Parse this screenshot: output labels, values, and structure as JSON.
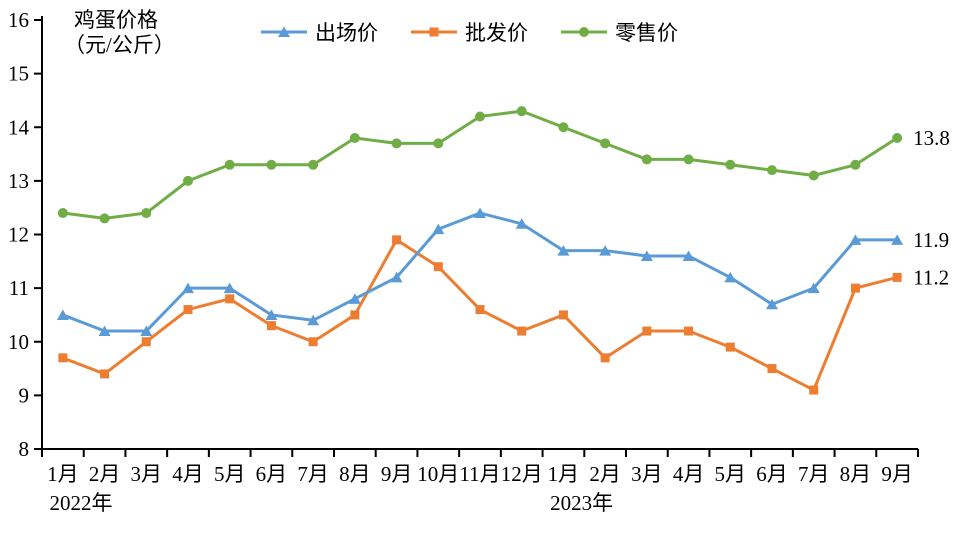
{
  "page": {
    "background": "#ffffff"
  },
  "chart": {
    "title_line1": "鸡蛋价格",
    "title_line2": "（元/公斤）"
  },
  "chart_data": {
    "type": "line",
    "title": "鸡蛋价格（元/公斤）",
    "ylabel": "鸡蛋价格（元/公斤）",
    "xlabel": "",
    "ylim": [
      8,
      16
    ],
    "yticks": [
      8,
      9,
      10,
      11,
      12,
      13,
      14,
      15,
      16
    ],
    "grid": false,
    "legend_position": "top",
    "axis_color": "#000000",
    "categories": [
      "1月",
      "2月",
      "3月",
      "4月",
      "5月",
      "6月",
      "7月",
      "8月",
      "9月",
      "10月",
      "11月",
      "12月",
      "1月",
      "2月",
      "3月",
      "4月",
      "5月",
      "6月",
      "7月",
      "8月",
      "9月"
    ],
    "year_groups": [
      {
        "label": "2022年",
        "start_index": 0
      },
      {
        "label": "2023年",
        "start_index": 12
      }
    ],
    "series": [
      {
        "name": "出场价",
        "color": "#5B9BD5",
        "marker": "triangle",
        "end_label": "11.9",
        "values": [
          10.5,
          10.2,
          10.2,
          11.0,
          11.0,
          10.5,
          10.4,
          10.8,
          11.2,
          12.1,
          12.4,
          12.2,
          11.7,
          11.7,
          11.6,
          11.6,
          11.2,
          10.7,
          11.0,
          11.9,
          11.9
        ]
      },
      {
        "name": "批发价",
        "color": "#ED7D31",
        "marker": "square",
        "end_label": "11.2",
        "values": [
          9.7,
          9.4,
          10.0,
          10.6,
          10.8,
          10.3,
          10.0,
          10.5,
          11.9,
          11.4,
          10.6,
          10.2,
          10.5,
          9.7,
          10.2,
          10.2,
          9.9,
          9.5,
          9.1,
          11.0,
          11.2
        ]
      },
      {
        "name": "零售价",
        "color": "#70AD47",
        "marker": "circle",
        "end_label": "13.8",
        "values": [
          12.4,
          12.3,
          12.4,
          13.0,
          13.3,
          13.3,
          13.3,
          13.8,
          13.7,
          13.7,
          14.2,
          14.3,
          14.0,
          13.7,
          13.4,
          13.4,
          13.3,
          13.2,
          13.1,
          13.3,
          13.8
        ]
      }
    ],
    "draw_order": [
      1,
      0,
      2
    ]
  }
}
